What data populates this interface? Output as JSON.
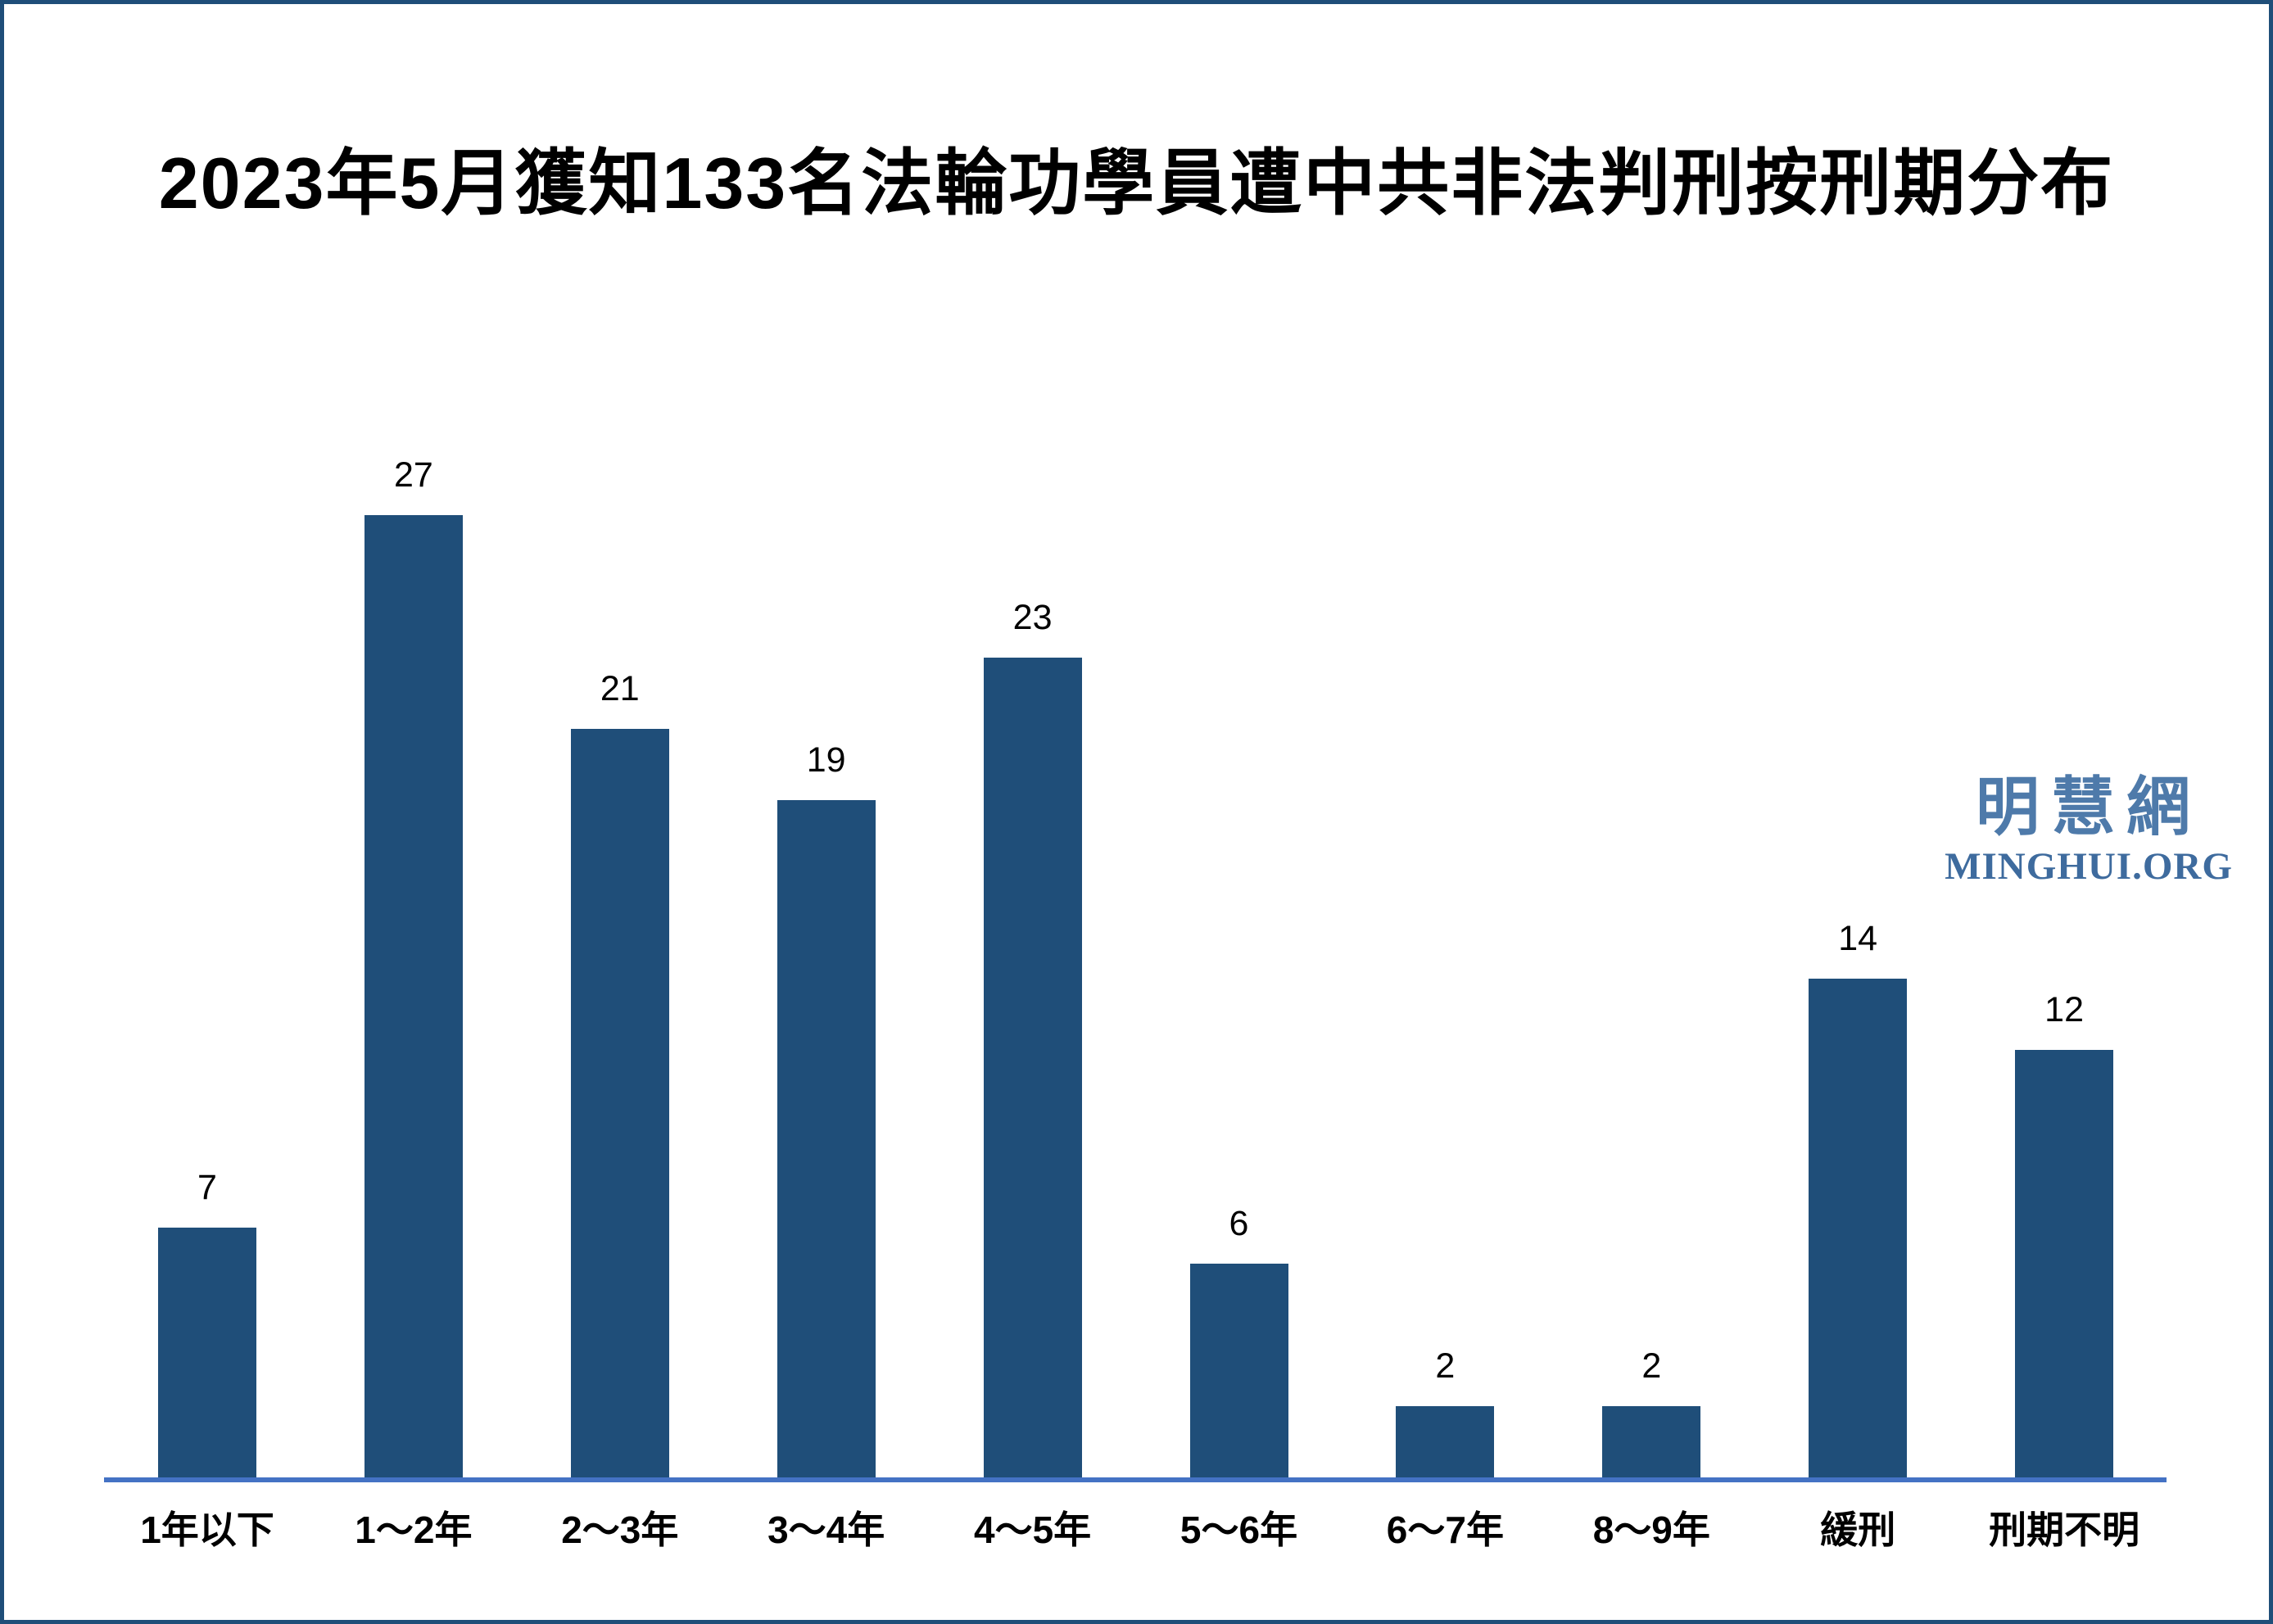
{
  "chart": {
    "title": "2023年5月獲知133名法輪功學員遭中共非法判刑按刑期分布"
  },
  "chart_data": {
    "type": "bar",
    "title": "2023年5月獲知133名法輪功學員遭中共非法判刑按刑期分布",
    "categories": [
      "1年以下",
      "1～2年",
      "2～3年",
      "3～4年",
      "4～5年",
      "5～6年",
      "6～7年",
      "8～9年",
      "緩刑",
      "刑期不明"
    ],
    "values": [
      7,
      27,
      21,
      19,
      23,
      6,
      2,
      2,
      14,
      12
    ],
    "xlabel": "",
    "ylabel": "",
    "ylim": [
      0,
      29
    ],
    "grid": false,
    "legend": false,
    "value_labels_shown": true,
    "bar_color": "#1F4E79",
    "axis_line_color": "#4472C4"
  },
  "watermark": {
    "cjk": "明慧網",
    "latin": "MINGHUI.ORG",
    "cjk_color": "#4E7AAA",
    "latin_color": "#3E6B9E"
  },
  "colors": {
    "page_border": "#1F4E79",
    "background": "#FFFFFF",
    "title_text": "#000000"
  }
}
